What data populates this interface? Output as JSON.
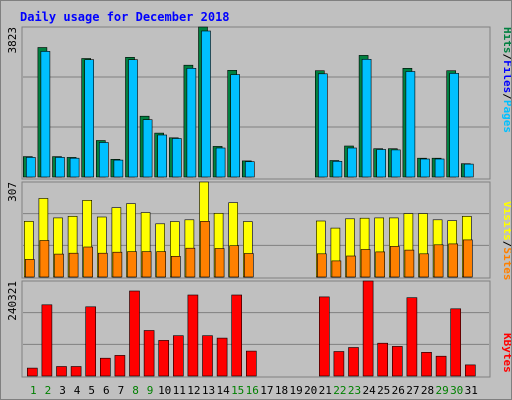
{
  "chart_data": {
    "type": "bar",
    "title": "Daily usage for December 2018",
    "categories": [
      "1",
      "2",
      "3",
      "4",
      "5",
      "6",
      "7",
      "8",
      "9",
      "10",
      "11",
      "12",
      "13",
      "14",
      "15",
      "16",
      "17",
      "18",
      "19",
      "20",
      "21",
      "22",
      "23",
      "24",
      "25",
      "26",
      "27",
      "28",
      "29",
      "30",
      "31"
    ],
    "weekend_days": [
      "1",
      "2",
      "8",
      "9",
      "15",
      "16",
      "22",
      "23",
      "29",
      "30"
    ],
    "colors": {
      "title": "#0000ff",
      "weekday_label": "#000000",
      "weekend_label": "#008000",
      "background": "#c0c0c0",
      "plot_border": "#808080",
      "grid": "#808080",
      "hits": "#008040",
      "files": "#00c0ff",
      "pages": "#00c0ff",
      "visits": "#ffff00",
      "sites": "#ff8000",
      "kbytes": "#ff0000"
    },
    "panels": [
      {
        "id": "hits",
        "max_label": "3823",
        "ylim": [
          0,
          3823
        ],
        "legend": [
          {
            "label": "Hits",
            "color": "#008040"
          },
          {
            "label": "/",
            "color": "#000000"
          },
          {
            "label": "Files",
            "color": "#0000ff"
          },
          {
            "label": "/",
            "color": "#000000"
          },
          {
            "label": "Pages",
            "color": "#00c0ff"
          }
        ],
        "series": [
          {
            "name": "Hits",
            "color": "#008040",
            "values": [
              520,
              3300,
              520,
              500,
              3020,
              930,
              450,
              3050,
              1550,
              1120,
              1000,
              2850,
              3823,
              780,
              2720,
              410,
              0,
              0,
              0,
              0,
              2710,
              420,
              790,
              3100,
              720,
              720,
              2770,
              480,
              480,
              2710,
              340
            ]
          },
          {
            "name": "Files",
            "color": "#00c0ff",
            "values": [
              500,
              3200,
              500,
              480,
              2990,
              880,
              430,
              2990,
              1460,
              1070,
              980,
              2770,
              3720,
              740,
              2610,
              390,
              0,
              0,
              0,
              0,
              2630,
              400,
              740,
              3000,
              700,
              690,
              2690,
              460,
              460,
              2640,
              330
            ]
          }
        ]
      },
      {
        "id": "visits",
        "max_label": "307",
        "ylim": [
          0,
          307
        ],
        "legend": [
          {
            "label": "Visits",
            "color": "#ffff00"
          },
          {
            "label": "/",
            "color": "#000000"
          },
          {
            "label": "Sites",
            "color": "#ff8000"
          }
        ],
        "series": [
          {
            "name": "Visits",
            "color": "#ffff00",
            "values": [
              180,
              254,
              191,
              196,
              248,
              194,
              224,
              237,
              208,
              172,
              179,
              185,
              307,
              206,
              240,
              179,
              0,
              0,
              0,
              0,
              181,
              158,
              188,
              190,
              191,
              191,
              205,
              205,
              185,
              182,
              196
            ]
          },
          {
            "name": "Sites",
            "color": "#ff8000",
            "values": [
              57,
              118,
              74,
              77,
              97,
              77,
              80,
              82,
              82,
              82,
              67,
              93,
              180,
              92,
              101,
              76,
              0,
              0,
              0,
              0,
              75,
              52,
              68,
              89,
              81,
              99,
              87,
              75,
              104,
              107,
              120
            ]
          }
        ]
      },
      {
        "id": "kbytes",
        "max_label": "240321",
        "ylim": [
          0,
          240321
        ],
        "legend": [
          {
            "label": "KBytes",
            "color": "#ff0000"
          }
        ],
        "series": [
          {
            "name": "KBytes",
            "color": "#ff0000",
            "values": [
              20000,
              180000,
              24000,
              24000,
              175000,
              45000,
              52000,
              215000,
              115000,
              90000,
              102000,
              205000,
              102000,
              96000,
              205000,
              63000,
              0,
              0,
              0,
              0,
              200000,
              62000,
              72000,
              240321,
              83000,
              75000,
              198000,
              60000,
              50000,
              170000,
              28000
            ]
          }
        ]
      }
    ]
  }
}
